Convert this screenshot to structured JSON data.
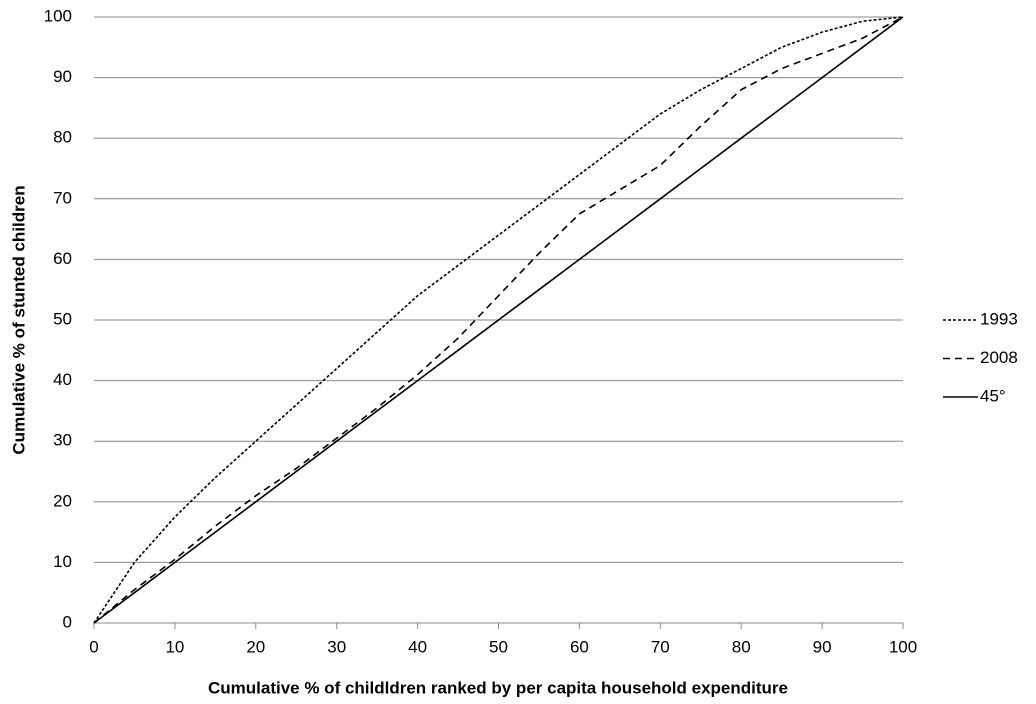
{
  "chart_data": {
    "type": "line",
    "xlabel": "Cumulative % of childldren ranked by per capita household expenditure",
    "ylabel": "Cumulative % of stunted children",
    "x": [
      0,
      5,
      10,
      15,
      20,
      25,
      30,
      35,
      40,
      45,
      50,
      55,
      60,
      65,
      70,
      75,
      80,
      85,
      90,
      95,
      100
    ],
    "series": [
      {
        "name": "1993",
        "color": "#000000",
        "dash": "dotted",
        "values": [
          0,
          10,
          17.5,
          24,
          30,
          36,
          42,
          48,
          54,
          59,
          64,
          69,
          74,
          79,
          84,
          88,
          91.5,
          95,
          97.5,
          99.3,
          100
        ]
      },
      {
        "name": "2008",
        "color": "#000000",
        "dash": "dashed",
        "values": [
          0,
          5.5,
          10.5,
          16,
          21,
          25.5,
          30.5,
          35.5,
          41,
          47,
          54,
          61,
          67.5,
          71.5,
          75.5,
          82,
          88,
          91.5,
          94,
          96.5,
          100
        ]
      },
      {
        "name": "45°",
        "color": "#000000",
        "dash": "solid",
        "values": [
          0,
          5,
          10,
          15,
          20,
          25,
          30,
          35,
          40,
          45,
          50,
          55,
          60,
          65,
          70,
          75,
          80,
          85,
          90,
          95,
          100
        ]
      }
    ],
    "xlim": [
      0,
      100
    ],
    "xticks": [
      0,
      10,
      20,
      30,
      40,
      50,
      60,
      70,
      80,
      90,
      100
    ],
    "ylim": [
      0,
      100
    ],
    "yticks": [
      0,
      10,
      20,
      30,
      40,
      50,
      60,
      70,
      80,
      90,
      100
    ],
    "grid": true,
    "legend": "right"
  }
}
